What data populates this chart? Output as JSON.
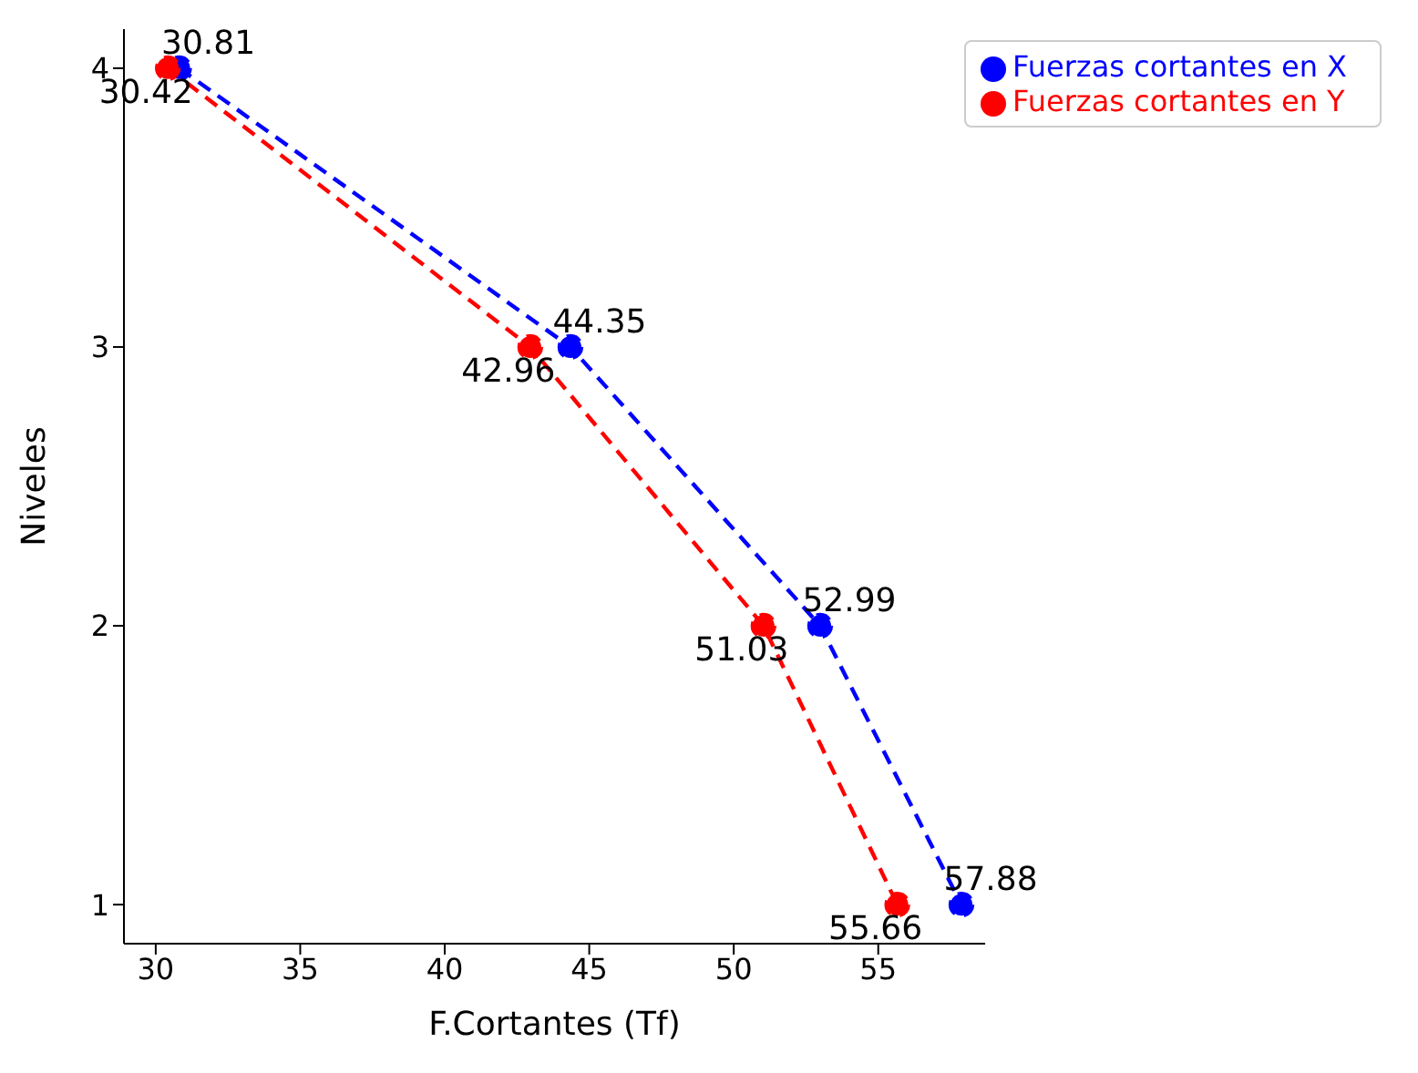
{
  "chart_data": {
    "type": "line",
    "orientation": "horizontal",
    "xlabel": "F.Cortantes (Tf)",
    "ylabel": "Niveles",
    "categories": [
      "4",
      "3",
      "2",
      "1"
    ],
    "series": [
      {
        "name": "Fuerzas cortantes en X",
        "color": "#0000ff",
        "values": [
          30.81,
          44.35,
          52.99,
          57.88
        ]
      },
      {
        "name": "Fuerzas cortantes en Y",
        "color": "#ff0000",
        "values": [
          30.42,
          42.96,
          51.03,
          55.66
        ]
      }
    ],
    "xlim": [
      28.9,
      58.7
    ],
    "xticks": [
      30,
      35,
      40,
      45,
      50,
      55
    ],
    "legend": "top right",
    "marker": "circle",
    "line_style": "dashed",
    "data_labels": true
  }
}
